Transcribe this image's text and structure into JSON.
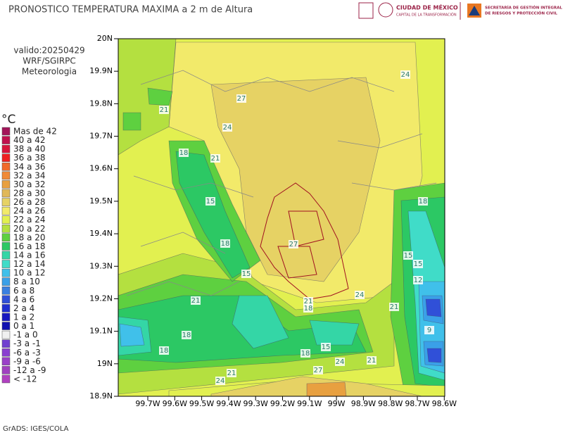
{
  "title": "PRONOSTICO TEMPERATURA MAXIMA a 2 m de Altura",
  "info": [
    "valido:20250429",
    "WRF/SGIRPC",
    "Meteorologia"
  ],
  "unit": "°C",
  "legend": [
    {
      "label": "Mas de 42",
      "color": "#a3155a"
    },
    {
      "label": "40 a 42",
      "color": "#c0104e"
    },
    {
      "label": "38 a 40",
      "color": "#d8143c"
    },
    {
      "label": "36 a 38",
      "color": "#ee2020"
    },
    {
      "label": "34 a 36",
      "color": "#f06a2a"
    },
    {
      "label": "32 a 34",
      "color": "#f08a38"
    },
    {
      "label": "30 a 32",
      "color": "#e8a040"
    },
    {
      "label": "28 a 30",
      "color": "#e0b858"
    },
    {
      "label": "26 a 28",
      "color": "#e6d264"
    },
    {
      "label": "24 a 26",
      "color": "#f2ea6a"
    },
    {
      "label": "22 a 24",
      "color": "#e2f050"
    },
    {
      "label": "20 a 22",
      "color": "#b4e040"
    },
    {
      "label": "18 a 20",
      "color": "#5ed040"
    },
    {
      "label": "16 a 18",
      "color": "#2cc864"
    },
    {
      "label": "14 a 16",
      "color": "#34d6a6"
    },
    {
      "label": "12 a 14",
      "color": "#40dcc8"
    },
    {
      "label": "10 a 12",
      "color": "#40c0ea"
    },
    {
      "label": "8 a 10",
      "color": "#3aa0e8"
    },
    {
      "label": "6 a 8",
      "color": "#3a80e0"
    },
    {
      "label": "4 a 6",
      "color": "#3050d8"
    },
    {
      "label": "2 a 4",
      "color": "#2030d0"
    },
    {
      "label": "1 a 2",
      "color": "#1818c0"
    },
    {
      "label": "0 a 1",
      "color": "#1010b0"
    },
    {
      "label": "-1 a 0",
      "color": "#f0f0f0"
    },
    {
      "label": "-3 a -1",
      "color": "#7040d0"
    },
    {
      "label": "-6 a -3",
      "color": "#8a40d0"
    },
    {
      "label": "-9 a -6",
      "color": "#9a40c8"
    },
    {
      "label": "-12 a -9",
      "color": "#a040c0"
    },
    {
      "label": "< -12",
      "color": "#b040c0"
    }
  ],
  "lat_labels": [
    "20N",
    "19.9N",
    "19.8N",
    "19.7N",
    "19.6N",
    "19.5N",
    "19.4N",
    "19.3N",
    "19.2N",
    "19.1N",
    "19N",
    "18.9N"
  ],
  "lon_labels": [
    "99.7W",
    "99.6W",
    "99.5W",
    "99.4W",
    "99.3W",
    "99.2W",
    "99.1W",
    "99W",
    "98.9W",
    "98.8W",
    "98.7W",
    "98.6W"
  ],
  "contour_labels": [
    "24",
    "27",
    "21",
    "24",
    "18",
    "21",
    "15",
    "18",
    "15",
    "27",
    "21",
    "18",
    "24",
    "21",
    "18",
    "18",
    "15",
    "18",
    "21",
    "27",
    "24",
    "21",
    "24",
    "18",
    "15",
    "15",
    "12",
    "21",
    "9"
  ],
  "logos": {
    "cdmx": "CIUDAD DE MÉXICO",
    "cdmx_sub": "CAPITAL DE LA TRANSFORMACIÓN",
    "sgirpc_1": "SECRETARÍA DE GESTIÓN INTEGRAL",
    "sgirpc_2": "DE RIESGOS Y PROTECCIÓN CIVIL"
  },
  "footer": "GrADS: IGES/COLA"
}
